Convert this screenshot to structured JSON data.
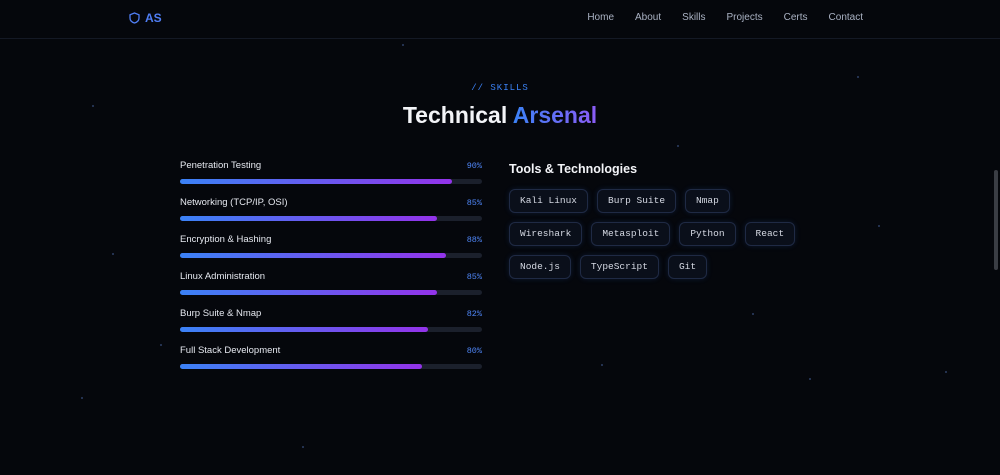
{
  "nav": {
    "logo": "AS",
    "links": [
      "Home",
      "About",
      "Skills",
      "Projects",
      "Certs",
      "Contact"
    ]
  },
  "section": {
    "label": "// SKILLS",
    "title_main": "Technical",
    "title_accent": "Arsenal"
  },
  "skills": [
    {
      "name": "Penetration Testing",
      "value": 90,
      "value_label": "90%"
    },
    {
      "name": "Networking (TCP/IP, OSI)",
      "value": 85,
      "value_label": "85%"
    },
    {
      "name": "Encryption & Hashing",
      "value": 88,
      "value_label": "88%"
    },
    {
      "name": "Linux Administration",
      "value": 85,
      "value_label": "85%"
    },
    {
      "name": "Burp Suite & Nmap",
      "value": 82,
      "value_label": "82%"
    },
    {
      "name": "Full Stack Development",
      "value": 80,
      "value_label": "80%"
    }
  ],
  "tools": {
    "title": "Tools & Technologies",
    "tags": [
      "Kali Linux",
      "Burp Suite",
      "Nmap",
      "Wireshark",
      "Metasploit",
      "Python",
      "React",
      "Node.js",
      "TypeScript",
      "Git"
    ]
  }
}
